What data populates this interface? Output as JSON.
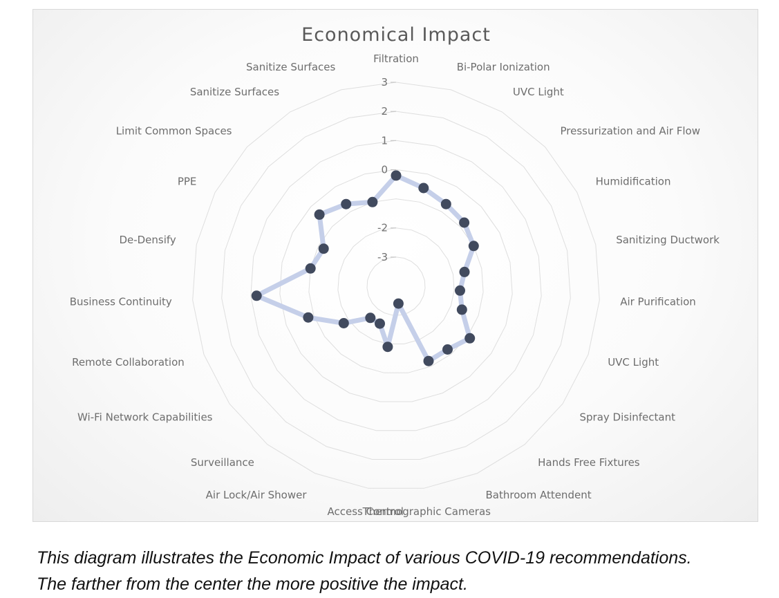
{
  "chart_data": {
    "type": "radar",
    "title": "Economical Impact",
    "categories": [
      "Filtration",
      "Bi-Polar Ionization",
      "UVC Light",
      "Pressurization and Air Flow",
      "Humidification",
      "Sanitizing Ductwork",
      "Air Purification",
      "UVC Light",
      "Spray Disinfectant",
      "Hands Free Fixtures",
      "Bathroom Attendent",
      "Thermographic Cameras",
      "Access Control",
      "Air Lock/Air Shower",
      "Surveillance",
      "Wi-Fi Network Capabilities",
      "Remote Collaboration",
      "Business Continuity",
      "De-Densify",
      "PPE",
      "Limit Common Spaces",
      "Sanitize Surfaces",
      "Sanitize Surfaces"
    ],
    "series": [
      {
        "values": [
          -0.2,
          -0.5,
          -0.7,
          -0.8,
          -1.0,
          -1.6,
          -1.8,
          -1.6,
          -0.9,
          -1.2,
          -1.2,
          -3.4,
          -1.9,
          -2.6,
          -2.6,
          -1.8,
          -0.8,
          0.8,
          -1.0,
          -1.2,
          -0.4,
          -0.7,
          -1.0
        ]
      }
    ],
    "tick_labels": [
      "3",
      "2",
      "1",
      "0",
      "-2",
      "-3"
    ],
    "r_range": [
      -4,
      3
    ],
    "grid": true,
    "colors": {
      "line": "#c5cfe9",
      "marker": "#414a5e",
      "grid": "#dedede",
      "text": "#6d6d6d"
    }
  },
  "caption": {
    "line1": "This diagram illustrates the Economic Impact of various COVID-19 recommendations.",
    "line2": "The farther from the center the more positive the impact."
  }
}
